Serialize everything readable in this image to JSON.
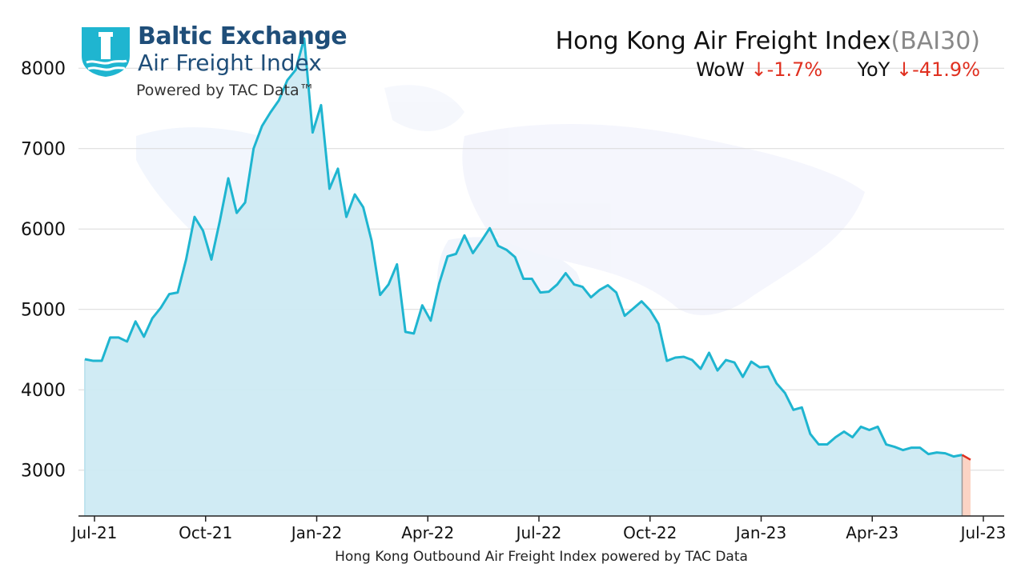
{
  "logo": {
    "title": "Baltic Exchange",
    "subtitle": "Air Freight Index",
    "powered": "Powered by TAC Data™"
  },
  "header": {
    "title": "Hong Kong Air Freight Index",
    "code": "(BAI30)",
    "wow_label": "WoW",
    "wow_value": "↓-1.7%",
    "yoy_label": "YoY",
    "yoy_value": "↓-41.9%"
  },
  "colors": {
    "line": "#1fb5d0",
    "fill": "#cdeaf3",
    "last_segment": "#e03020",
    "last_fill": "#fbd3c4"
  },
  "chart_data": {
    "type": "area",
    "title": "Hong Kong Air Freight Index",
    "xlabel": "Hong Kong Outbound Air Freight Index powered by TAC Data",
    "ylabel": "",
    "x_ticks": [
      "Jul-21",
      "Oct-21",
      "Jan-22",
      "Apr-22",
      "Jul-22",
      "Oct-22",
      "Jan-23",
      "Apr-23",
      "Jul-23"
    ],
    "y_ticks": [
      3000,
      4000,
      5000,
      6000,
      7000,
      8000
    ],
    "ylim": [
      2430,
      8450
    ],
    "grid": "horizontal",
    "series": [
      {
        "name": "",
        "values": [
          4380,
          4360,
          4360,
          4650,
          4650,
          4600,
          4850,
          4660,
          4890,
          5020,
          5190,
          5210,
          5620,
          6150,
          5980,
          5620,
          6100,
          6630,
          6200,
          6330,
          7000,
          7280,
          7450,
          7600,
          7850,
          7980,
          8370,
          7200,
          7540,
          6500,
          6750,
          6150,
          6430,
          6270,
          5850,
          5180,
          5310,
          5560,
          4720,
          4700,
          5050,
          4860,
          5320,
          5660,
          5690,
          5920,
          5700,
          5850,
          6010,
          5790,
          5740,
          5650,
          5380,
          5380,
          5210,
          5220,
          5310,
          5450,
          5310,
          5280,
          5150,
          5240,
          5300,
          5210,
          4920,
          5010,
          5100,
          4990,
          4820,
          4360,
          4400,
          4410,
          4370,
          4260,
          4460,
          4240,
          4370,
          4340,
          4160,
          4350,
          4280,
          4290,
          4080,
          3960,
          3750,
          3780,
          3450,
          3320,
          3320,
          3410,
          3480,
          3410,
          3540,
          3500,
          3540,
          3320,
          3290,
          3250,
          3280,
          3280,
          3200,
          3220,
          3210,
          3170,
          3190,
          3130
        ]
      }
    ]
  }
}
